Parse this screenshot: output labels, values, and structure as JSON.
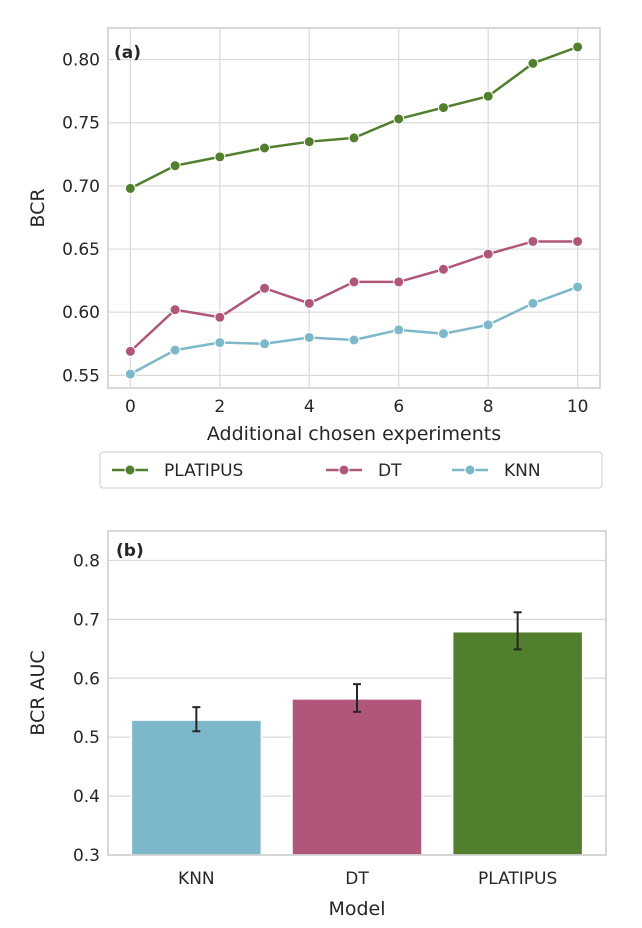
{
  "chart_data": [
    {
      "type": "line",
      "panel_label": "(a)",
      "xlabel": "Additional chosen experiments",
      "ylabel": "BCR",
      "xlim": [
        -0.5,
        10.5
      ],
      "ylim": [
        0.54,
        0.825
      ],
      "xticks": [
        0,
        2,
        4,
        6,
        8,
        10
      ],
      "yticks": [
        "0.55",
        "0.60",
        "0.65",
        "0.70",
        "0.75",
        "0.80"
      ],
      "grid": true,
      "legend_position": "bottom-outside",
      "x": [
        0,
        1,
        2,
        3,
        4,
        5,
        6,
        7,
        8,
        9,
        10
      ],
      "series": [
        {
          "name": "PLATIPUS",
          "color": "#527f2e",
          "values": [
            0.698,
            0.716,
            0.723,
            0.73,
            0.735,
            0.738,
            0.753,
            0.762,
            0.771,
            0.797,
            0.81
          ]
        },
        {
          "name": "DT",
          "color": "#b0567a",
          "values": [
            0.569,
            0.602,
            0.596,
            0.619,
            0.607,
            0.624,
            0.624,
            0.634,
            0.646,
            0.656,
            0.656
          ]
        },
        {
          "name": "KNN",
          "color": "#7db8ca",
          "values": [
            0.551,
            0.57,
            0.576,
            0.575,
            0.58,
            0.578,
            0.586,
            0.583,
            0.59,
            0.607,
            0.62
          ]
        }
      ]
    },
    {
      "type": "bar",
      "panel_label": "(b)",
      "xlabel": "Model",
      "ylabel": "BCR AUC",
      "ylim": [
        0.3,
        0.85
      ],
      "yticks": [
        "0.3",
        "0.4",
        "0.5",
        "0.6",
        "0.7",
        "0.8"
      ],
      "grid": true,
      "categories": [
        "KNN",
        "DT",
        "PLATIPUS"
      ],
      "values": [
        0.529,
        0.565,
        0.679
      ],
      "error_low": [
        0.51,
        0.543,
        0.649
      ],
      "error_high": [
        0.551,
        0.59,
        0.712
      ],
      "colors": [
        "#7db8ca",
        "#b0567a",
        "#527f2e"
      ]
    }
  ]
}
